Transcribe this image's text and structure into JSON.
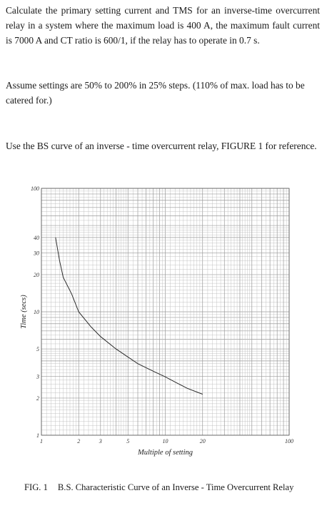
{
  "question": {
    "paragraph1": "Calculate the primary setting current and TMS for an inverse-time overcurrent relay in a system where the maximum load is 400 A, the maximum fault current is 7000 A and CT ratio is 600/1, if the relay has to operate in 0.7 s.",
    "paragraph2": "Assume settings are 50% to 200% in 25% steps. (110% of max. load has to be catered for.)",
    "paragraph3": "Use the BS curve of an inverse - time overcurrent relay, FIGURE 1 for reference."
  },
  "figure": {
    "caption_number": "FIG. 1",
    "caption_text": "B.S. Characteristic Curve of an Inverse - Time Overcurrent Relay"
  },
  "chart_data": {
    "type": "line",
    "title": "",
    "xlabel": "Multiple of setting",
    "ylabel": "Time (secs)",
    "x_scale": "log",
    "y_scale": "log",
    "xlim": [
      1,
      100
    ],
    "ylim": [
      1,
      100
    ],
    "x_ticks": [
      {
        "value": 1,
        "label": "1"
      },
      {
        "value": 2,
        "label": "2"
      },
      {
        "value": 3,
        "label": "3"
      },
      {
        "value": 5,
        "label": "5"
      },
      {
        "value": 10,
        "label": "10"
      },
      {
        "value": 20,
        "label": "20"
      },
      {
        "value": 100,
        "label": "100"
      }
    ],
    "y_ticks": [
      {
        "value": 1,
        "label": "1"
      },
      {
        "value": 2,
        "label": "2"
      },
      {
        "value": 3,
        "label": "3"
      },
      {
        "value": 5,
        "label": "5"
      },
      {
        "value": 10,
        "label": "10"
      },
      {
        "value": 20,
        "label": "20"
      },
      {
        "value": 30,
        "label": "30"
      },
      {
        "value": 40,
        "label": "40"
      },
      {
        "value": 100,
        "label": "100"
      }
    ],
    "grid": true,
    "line_color": "#2b2b2b",
    "grid_color": "#bdbdbd",
    "series": [
      {
        "x": [
          1.3,
          1.4,
          1.5,
          1.75,
          2,
          2.5,
          3,
          4,
          5,
          6,
          8,
          10,
          12,
          15,
          20
        ],
        "y": [
          40,
          26,
          19,
          14,
          10,
          7.6,
          6.3,
          5.0,
          4.3,
          3.8,
          3.3,
          2.97,
          2.7,
          2.4,
          2.15
        ]
      }
    ]
  }
}
